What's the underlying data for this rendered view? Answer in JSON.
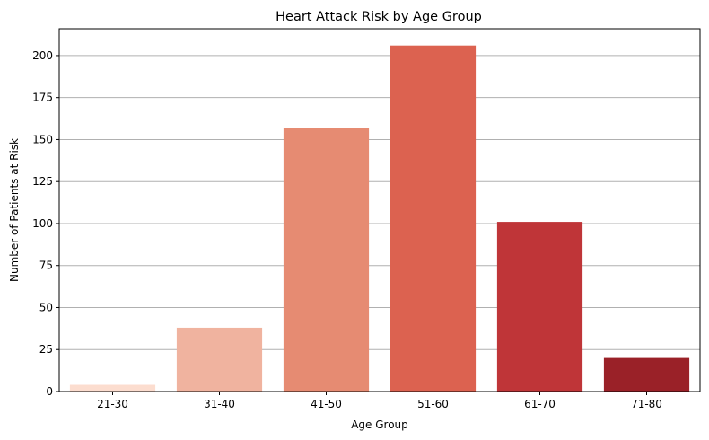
{
  "chart_data": {
    "type": "bar",
    "title": "Heart Attack Risk by Age Group",
    "xlabel": "Age Group",
    "ylabel": "Number of Patients at Risk",
    "categories": [
      "21-30",
      "31-40",
      "41-50",
      "51-60",
      "61-70",
      "71-80"
    ],
    "values": [
      4,
      38,
      157,
      206,
      101,
      20
    ],
    "colors": [
      "#fcddcf",
      "#f0b39f",
      "#e68b72",
      "#dc6250",
      "#bf3538",
      "#9a2128"
    ],
    "ylim": [
      0,
      216
    ],
    "yticks": [
      0,
      25,
      50,
      75,
      100,
      125,
      150,
      175,
      200
    ],
    "grid": "y"
  }
}
